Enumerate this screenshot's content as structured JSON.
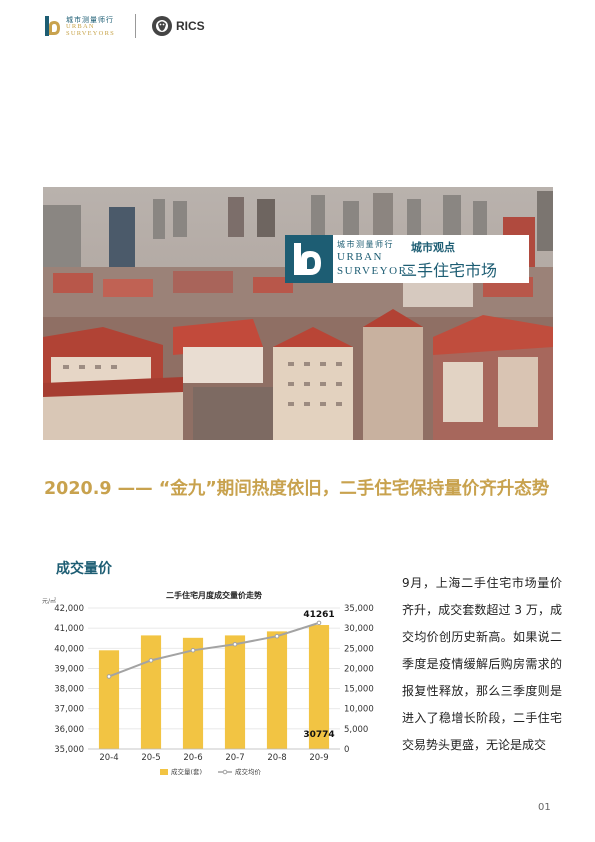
{
  "header": {
    "logo_cn": "城市测量师行",
    "logo_en_line1": "URBAN",
    "logo_en_line2": "SURVEYORS",
    "rics_label": "RICS"
  },
  "hero": {
    "badge_cn": "城市测量师行",
    "badge_en_line1": "URBAN",
    "badge_en_line2": "SURVEYORS",
    "badge_title": "城市观点",
    "badge_subtitle": "二手住宅市场"
  },
  "headline": "2020.9 —— “金九”期间热度依旧，二手住宅保持量价齐升态势",
  "section_title": "成交量价",
  "body_text": "9月，上海二手住宅市场量价齐升，成交套数超过 3 万，成交均价创历史新高。如果说二季度是疫情缓解后购房需求的报复性释放，那么三季度则是进入了稳增长阶段，二手住宅交易势头更盛，无论是成交",
  "page_number": "01",
  "colors": {
    "accent_gold": "#c8a24e",
    "brand_teal": "#1d5d73",
    "bar_fill": "#f2c443",
    "line_color": "#a3a3a3"
  },
  "chart_data": {
    "type": "bar",
    "title": "二手住宅月度成交量价走势",
    "left_unit": "元/㎡",
    "categories": [
      "20-4",
      "20-5",
      "20-6",
      "20-7",
      "20-8",
      "20-9"
    ],
    "series": [
      {
        "name": "成交量(套)",
        "kind": "bar",
        "axis": "right",
        "values": [
          24500,
          28200,
          27600,
          28200,
          29200,
          30774
        ]
      },
      {
        "name": "成交均价",
        "kind": "line",
        "axis": "left",
        "values": [
          38600,
          39400,
          39900,
          40200,
          40600,
          41261
        ]
      }
    ],
    "left_ylim": [
      35000,
      42000
    ],
    "left_ticks": [
      "35,000",
      "36,000",
      "37,000",
      "38,000",
      "39,000",
      "40,000",
      "41,000",
      "42,000"
    ],
    "right_ylim": [
      0,
      35000
    ],
    "right_ticks": [
      "0",
      "5,000",
      "10,000",
      "15,000",
      "20,000",
      "25,000",
      "30,000",
      "35,000"
    ],
    "data_labels": {
      "price_last": "41261",
      "volume_last": "30774"
    },
    "grid": true,
    "legend": "bottom"
  }
}
